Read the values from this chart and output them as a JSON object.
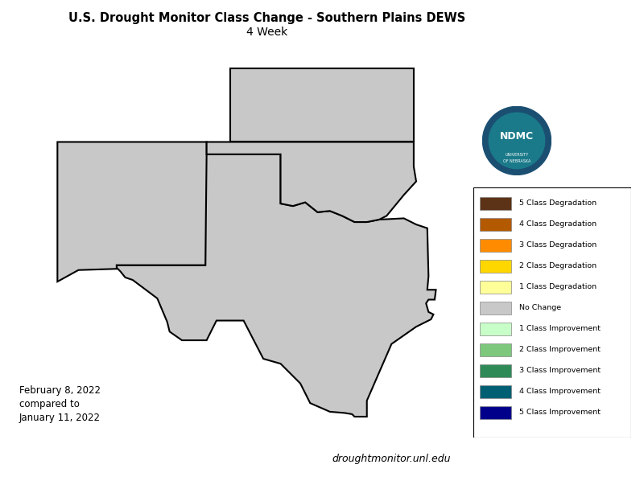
{
  "title_line1": "U.S. Drought Monitor Class Change - Southern Plains DEWS",
  "title_line2": "4 Week",
  "date_text": "February 8, 2022\ncompared to\nJanuary 11, 2022",
  "website_text": "droughtmonitor.unl.edu",
  "legend_items": [
    {
      "label": "5 Class Degradation",
      "color": "#5c3317"
    },
    {
      "label": "4 Class Degradation",
      "color": "#b35900"
    },
    {
      "label": "3 Class Degradation",
      "color": "#ff8c00"
    },
    {
      "label": "2 Class Degradation",
      "color": "#ffd700"
    },
    {
      "label": "1 Class Degradation",
      "color": "#ffff99"
    },
    {
      "label": "No Change",
      "color": "#c8c8c8"
    },
    {
      "label": "1 Class Improvement",
      "color": "#c8ffc8"
    },
    {
      "label": "2 Class Improvement",
      "color": "#7dc87d"
    },
    {
      "label": "3 Class Improvement",
      "color": "#2e8b57"
    },
    {
      "label": "4 Class Improvement",
      "color": "#005f73"
    },
    {
      "label": "5 Class Improvement",
      "color": "#00008b"
    }
  ],
  "background_color": "#ffffff",
  "c_5deg": "#5c3317",
  "c_4deg": "#b35900",
  "c_3deg": "#ff8c00",
  "c_2deg": "#ffd700",
  "c_1deg": "#ffff99",
  "c_nc": "#c8c8c8",
  "c_1imp": "#c8ffc8",
  "c_2imp": "#7dc87d",
  "c_3imp": "#2e8b57",
  "c_4imp": "#005f73",
  "c_5imp": "#00008b",
  "fig_width": 8.0,
  "fig_height": 5.98
}
